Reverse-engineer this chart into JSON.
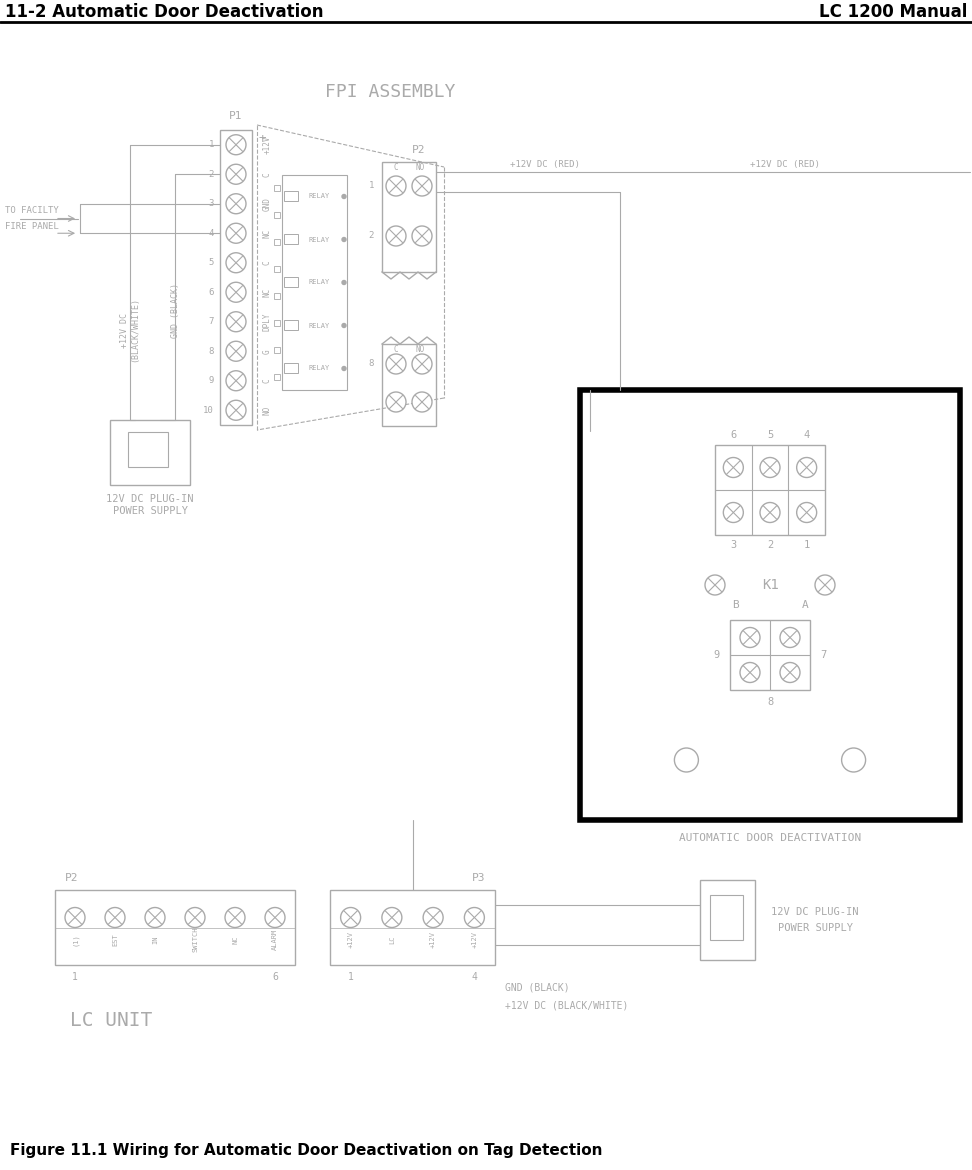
{
  "bg_color": "#ffffff",
  "header_left": "11-2 Automatic Door Deactivation",
  "header_right": "LC 1200 Manual",
  "footer_caption": "Figure 11.1 Wiring for Automatic Door Deactivation on Tag Detection",
  "fpi_title": "FPI ASSEMBLY",
  "auto_door_title": "AUTOMATIC DOOR DEACTIVATION",
  "lc_unit_title": "LC UNIT",
  "p1_label": "P1",
  "p2_label_fpi": "P2",
  "p2_label_lc": "P2",
  "p3_label": "P3",
  "k1_label": "K1",
  "power_supply_text_top": "12V DC PLUG-IN\nPOWER SUPPLY",
  "power_supply_text_bottom": "12V DC PLUG-IN\nPOWER SUPPLY",
  "to_facility_fire_panel": "TO FACILTY\nFIRE PANEL",
  "gnd_black": "GND (BLACK)",
  "plus12v_red": "+12V DC (RED)",
  "plus12v_black_white": "+12V DC (BLACK/WHITE)",
  "line_color": "#aaaaaa",
  "black": "#000000",
  "text_color": "#aaaaaa",
  "relay_color": "#aaaaaa"
}
